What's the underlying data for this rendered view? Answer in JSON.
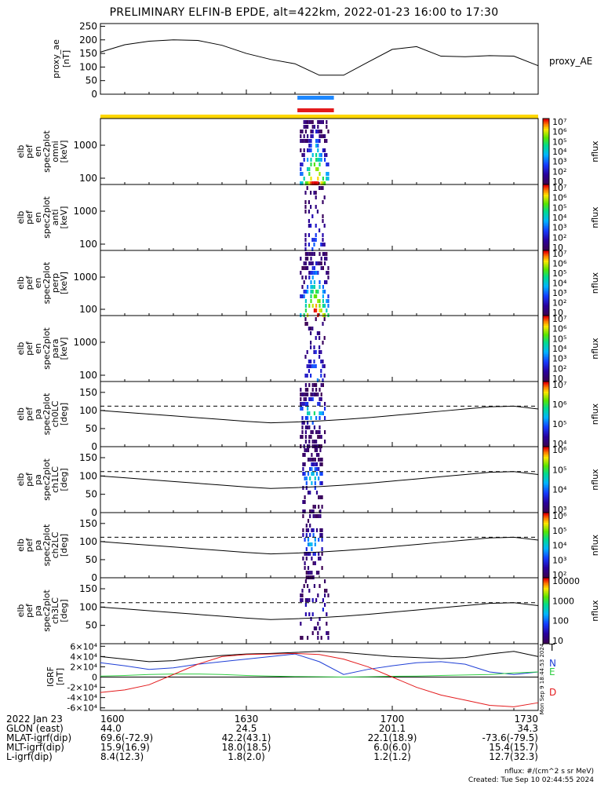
{
  "title": "PRELIMINARY ELFIN-B EPDE, alt=422km, 2022-01-23 16:00 to 17:30",
  "chart_data": [
    {
      "type": "line",
      "name": "proxy_ae",
      "ylabel": [
        "proxy_ae",
        "[nT]"
      ],
      "yticks": [
        0,
        50,
        100,
        150,
        200,
        250
      ],
      "ylim": [
        0,
        260
      ],
      "series_label": "proxy_AE",
      "x_min": [
        0,
        5,
        10,
        15,
        20,
        25,
        30,
        35,
        40,
        45,
        50,
        55,
        60,
        65,
        70,
        75,
        80,
        85,
        90
      ],
      "values": [
        155,
        182,
        195,
        200,
        198,
        180,
        150,
        128,
        112,
        70,
        70,
        118,
        165,
        175,
        140,
        138,
        142,
        140,
        105
      ]
    },
    {
      "type": "bar-strip",
      "name": "data-availability",
      "bars": [
        {
          "color": "#1e88ff",
          "x_start_min": 40.5,
          "x_end_min": 48
        },
        {
          "color": "#e31a1c",
          "x_start_min": 40.5,
          "x_end_min": 48
        }
      ],
      "strip_color": "#ffd700"
    },
    {
      "type": "heatmap",
      "ylabel": [
        "elb",
        "pef",
        "en",
        "spec2plot",
        "omni",
        "[keV]"
      ],
      "yticks": [
        "100",
        "1000"
      ],
      "log_y": true,
      "colorbar": {
        "label": "nflux",
        "ticks": [
          "10",
          "10²",
          "10³",
          "10⁴",
          "10⁵",
          "10⁶",
          "10⁷"
        ]
      },
      "active_window_min": [
        41,
        47
      ],
      "intensity": 1.0
    },
    {
      "type": "heatmap",
      "ylabel": [
        "elb",
        "pef",
        "en",
        "spec2plot",
        "anti",
        "[keV]"
      ],
      "yticks": [
        "100",
        "1000"
      ],
      "log_y": true,
      "colorbar": {
        "label": "nflux",
        "ticks": [
          "10",
          "10²",
          "10³",
          "10⁴",
          "10⁵",
          "10⁶",
          "10⁷"
        ]
      },
      "active_window_min": [
        42,
        46
      ],
      "intensity": 0.3
    },
    {
      "type": "heatmap",
      "ylabel": [
        "elb",
        "pef",
        "en",
        "spec2plot",
        "perp",
        "[keV]"
      ],
      "yticks": [
        "100",
        "1000"
      ],
      "log_y": true,
      "colorbar": {
        "label": "nflux",
        "ticks": [
          "10",
          "10²",
          "10³",
          "10⁴",
          "10⁵",
          "10⁶",
          "10⁷"
        ]
      },
      "active_window_min": [
        41,
        47
      ],
      "intensity": 1.0
    },
    {
      "type": "heatmap",
      "ylabel": [
        "elb",
        "pef",
        "en",
        "spec2plot",
        "para",
        "[keV]"
      ],
      "yticks": [
        "100",
        "1000"
      ],
      "log_y": true,
      "colorbar": {
        "label": "nflux",
        "ticks": [
          "10",
          "10²",
          "10³",
          "10⁴",
          "10⁵",
          "10⁶",
          "10⁷"
        ]
      },
      "active_window_min": [
        42,
        46
      ],
      "intensity": 0.35
    },
    {
      "type": "heatmap",
      "ylabel": [
        "elb",
        "pef",
        "pa",
        "spec2plot",
        "ch0LC",
        "[deg]"
      ],
      "yticks": [
        "0",
        "50",
        "100",
        "150"
      ],
      "ylim": [
        0,
        180
      ],
      "colorbar": {
        "label": "nflux",
        "ticks": [
          "10⁴",
          "10⁵",
          "10⁶",
          "10⁷"
        ]
      },
      "active_window_min": [
        41,
        46
      ],
      "intensity": 0.9,
      "lc_line": [
        100,
        95,
        90,
        85,
        80,
        75,
        70,
        66,
        68,
        71,
        75,
        80,
        86,
        92,
        98,
        104,
        110,
        112,
        104
      ],
      "alc_line_dashed": 112
    },
    {
      "type": "heatmap",
      "ylabel": [
        "elb",
        "pef",
        "pa",
        "spec2plot",
        "ch1LC",
        "[deg]"
      ],
      "yticks": [
        "0",
        "50",
        "100",
        "150"
      ],
      "ylim": [
        0,
        180
      ],
      "colorbar": {
        "label": "nflux",
        "ticks": [
          "10³",
          "10⁴",
          "10⁵",
          "10⁶"
        ]
      },
      "active_window_min": [
        41.5,
        45.5
      ],
      "intensity": 0.8,
      "lc_line": [
        100,
        95,
        90,
        85,
        80,
        75,
        70,
        66,
        68,
        71,
        75,
        80,
        86,
        92,
        98,
        104,
        110,
        112,
        104
      ],
      "alc_line_dashed": 112
    },
    {
      "type": "heatmap",
      "ylabel": [
        "elb",
        "pef",
        "pa",
        "spec2plot",
        "ch2LC",
        "[deg]"
      ],
      "yticks": [
        "0",
        "50",
        "100",
        "150"
      ],
      "ylim": [
        0,
        180
      ],
      "colorbar": {
        "label": "nflux",
        "ticks": [
          "10²",
          "10³",
          "10⁴",
          "10⁵",
          "10⁶"
        ]
      },
      "active_window_min": [
        41.5,
        45.5
      ],
      "intensity": 0.7,
      "lc_line": [
        100,
        95,
        90,
        85,
        80,
        75,
        70,
        66,
        68,
        71,
        75,
        80,
        86,
        92,
        98,
        104,
        110,
        112,
        104
      ],
      "alc_line_dashed": 112
    },
    {
      "type": "heatmap",
      "ylabel": [
        "elb",
        "pef",
        "pa",
        "spec2plot",
        "ch3LC",
        "[deg]"
      ],
      "yticks": [
        "50",
        "100",
        "150"
      ],
      "ylim": [
        0,
        180
      ],
      "colorbar": {
        "label": "nflux",
        "ticks": [
          "10",
          "100",
          "1000",
          "10000"
        ]
      },
      "active_window_min": [
        41,
        47
      ],
      "intensity": 0.3,
      "lc_line": [
        100,
        95,
        90,
        85,
        80,
        75,
        70,
        66,
        68,
        71,
        75,
        80,
        86,
        92,
        98,
        104,
        110,
        112,
        104
      ],
      "alc_line_dashed": 112
    },
    {
      "type": "line",
      "name": "IGRF",
      "ylabel": [
        "IGRF",
        "[nT]"
      ],
      "yticks": [
        "-6×10⁴",
        "-4×10⁴",
        "-2×10⁴",
        "0",
        "2×10⁴",
        "4×10⁴",
        "6×10⁴"
      ],
      "ylim": [
        -65000,
        65000
      ],
      "x_min": [
        0,
        5,
        10,
        15,
        20,
        25,
        30,
        35,
        40,
        45,
        50,
        55,
        60,
        65,
        70,
        75,
        80,
        85,
        90
      ],
      "series": [
        {
          "name": "T",
          "color": "#000000",
          "values": [
            40000,
            35000,
            30000,
            32000,
            38000,
            42000,
            45000,
            46000,
            48000,
            50000,
            48000,
            44000,
            40000,
            38000,
            36000,
            38000,
            45000,
            50000,
            40000
          ]
        },
        {
          "name": "N",
          "color": "#1f3fd6",
          "values": [
            28000,
            22000,
            15000,
            18000,
            25000,
            30000,
            35000,
            40000,
            45000,
            30000,
            5000,
            15000,
            22000,
            28000,
            30000,
            25000,
            10000,
            5000,
            10000
          ]
        },
        {
          "name": "E",
          "color": "#2ecc40",
          "values": [
            2000,
            3000,
            5000,
            6000,
            6000,
            5000,
            3000,
            2000,
            1000,
            500,
            0,
            500,
            1500,
            2000,
            3000,
            4000,
            5000,
            8000,
            10000
          ]
        },
        {
          "name": "D",
          "color": "#e31a1c",
          "values": [
            -30000,
            -25000,
            -15000,
            5000,
            25000,
            40000,
            44000,
            45000,
            46000,
            44000,
            35000,
            20000,
            0,
            -20000,
            -35000,
            -45000,
            -55000,
            -58000,
            -50000
          ]
        }
      ]
    }
  ],
  "xaxis": {
    "ticks": [
      "1600",
      "1630",
      "1700",
      "1730"
    ],
    "rows": [
      {
        "label": "2022 Jan 23",
        "values": [
          "1600",
          "1630",
          "1700",
          "1730"
        ]
      },
      {
        "label": "GLON (east)",
        "values": [
          "44.0",
          "24.5",
          "201.1",
          "34.3"
        ]
      },
      {
        "label": "MLAT-igrf(dip)",
        "values": [
          "69.6(-72.9)",
          "42.2(43.1)",
          "22.1(18.9)",
          "-73.6(-79.5)"
        ]
      },
      {
        "label": "MLT-igrf(dip)",
        "values": [
          "15.9(16.9)",
          "18.0(18.5)",
          "6.0(6.0)",
          "15.4(15.7)"
        ]
      },
      {
        "label": "L-igrf(dip)",
        "values": [
          "8.4(12.3)",
          "1.8(2.0)",
          "1.2(1.2)",
          "12.7(32.3)"
        ]
      }
    ]
  },
  "side_note": "Mon Sep 9 18:44:53 2024",
  "notes": {
    "units": "nflux: #/(cm^2 s sr MeV)",
    "created": "Created: Tue Sep 10 02:44:55 2024"
  }
}
